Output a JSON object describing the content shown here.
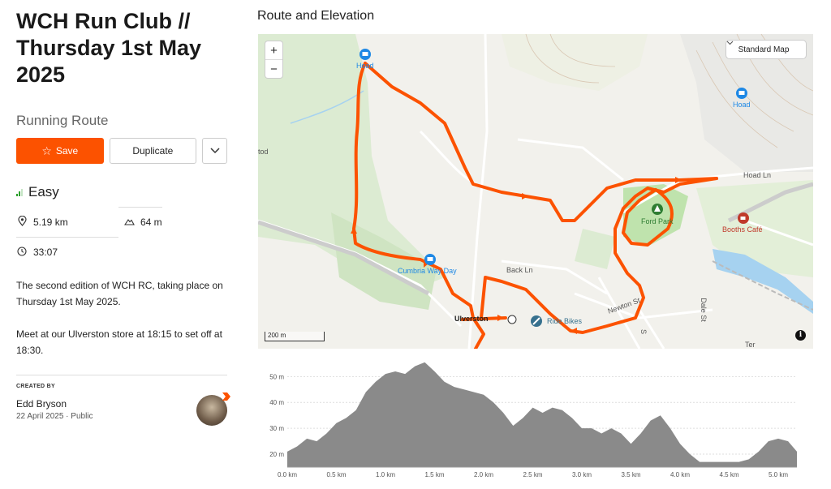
{
  "route": {
    "title": "WCH Run Club // Thursday 1st May 2025",
    "type_label": "Running Route",
    "difficulty": "Easy",
    "distance": "5.19 km",
    "elevation": "64 m",
    "time": "33:07",
    "description": [
      "The second edition of WCH RC, taking place on Thursday 1st May 2025.",
      "Meet at our Ulverston store at 18:15 to set off at 18:30."
    ]
  },
  "actions": {
    "save": "Save",
    "duplicate": "Duplicate"
  },
  "creator": {
    "heading": "CREATED BY",
    "name": "Edd Bryson",
    "date": "22 April 2025",
    "visibility": "Public"
  },
  "map": {
    "section_title": "Route and Elevation",
    "map_type": "Standard Map",
    "zoom_in": "+",
    "zoom_out": "−",
    "scale": "200 m",
    "info": "i",
    "labels": {
      "hoad_1": "Hoad",
      "hoad_2": "Hoad",
      "hoad_ln": "Hoad Ln",
      "ford_park": "Ford Park",
      "booths": "Booths Café",
      "cumbria": "Cumbria Way Day",
      "back_ln": "Back Ln",
      "ulverston": "Ulverston",
      "ride_bikes": "Ride Bikes",
      "newton_st": "Newton St",
      "dale_st": "Dale St",
      "tod": "tod",
      "street_1": "S",
      "ter": "Ter"
    },
    "route_color": "#fc5200"
  },
  "chart_data": {
    "type": "area",
    "title": "",
    "xlabel": "",
    "ylabel": "",
    "x_unit": "km",
    "y_unit": "m",
    "xlim": [
      0,
      5.19
    ],
    "ylim": [
      15,
      57
    ],
    "x_ticks": [
      "0.0 km",
      "0.5 km",
      "1.0 km",
      "1.5 km",
      "2.0 km",
      "2.5 km",
      "3.0 km",
      "3.5 km",
      "4.0 km",
      "4.5 km",
      "5.0 km"
    ],
    "y_ticks": [
      "20 m",
      "30 m",
      "40 m",
      "50 m"
    ],
    "x": [
      0,
      0.1,
      0.2,
      0.3,
      0.4,
      0.5,
      0.6,
      0.7,
      0.8,
      0.9,
      1.0,
      1.1,
      1.2,
      1.3,
      1.4,
      1.5,
      1.6,
      1.7,
      1.8,
      1.9,
      2.0,
      2.1,
      2.2,
      2.3,
      2.4,
      2.5,
      2.6,
      2.7,
      2.8,
      2.9,
      3.0,
      3.1,
      3.2,
      3.3,
      3.4,
      3.5,
      3.6,
      3.7,
      3.8,
      3.9,
      4.0,
      4.1,
      4.2,
      4.3,
      4.4,
      4.5,
      4.6,
      4.7,
      4.8,
      4.9,
      5.0,
      5.1,
      5.19
    ],
    "y": [
      21,
      23,
      26,
      25,
      28,
      32,
      34,
      37,
      44,
      48,
      51,
      52,
      51,
      54,
      55.5,
      52,
      48,
      46,
      45,
      44,
      43,
      40,
      36,
      31,
      34,
      38,
      36,
      38,
      37,
      34,
      30,
      30,
      28,
      30,
      28,
      24,
      28,
      33,
      35,
      30,
      24,
      20,
      17,
      17,
      17,
      17,
      17,
      18,
      21,
      25,
      26,
      25,
      21
    ],
    "fill": "#8a8a8a"
  }
}
